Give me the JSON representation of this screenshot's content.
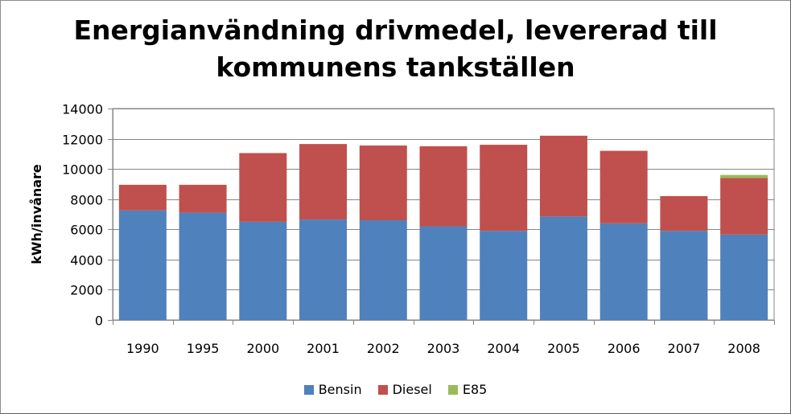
{
  "chart_data": {
    "type": "bar",
    "stacked": true,
    "title": "Energianvändning drivmedel, levererad till kommunens tankställen",
    "title_lines": [
      "Energianvändning drivmedel, levererad till",
      "kommunens tankställen"
    ],
    "xlabel": "",
    "ylabel": "kWh/invånare",
    "ylim": [
      0,
      14000
    ],
    "yticks": [
      0,
      2000,
      4000,
      6000,
      8000,
      10000,
      12000,
      14000
    ],
    "grid": true,
    "legend_position": "bottom",
    "categories": [
      "1990",
      "1995",
      "2000",
      "2001",
      "2002",
      "2003",
      "2004",
      "2005",
      "2006",
      "2007",
      "2008"
    ],
    "series": [
      {
        "name": "Bensin",
        "color": "#4f81bd",
        "values": [
          7250,
          7100,
          6500,
          6650,
          6600,
          6200,
          5900,
          6850,
          6400,
          5900,
          5650
        ]
      },
      {
        "name": "Diesel",
        "color": "#c0504d",
        "values": [
          1700,
          1850,
          4550,
          5000,
          4950,
          5300,
          5700,
          5350,
          4800,
          2300,
          3750
        ]
      },
      {
        "name": "E85",
        "color": "#9bbb59",
        "values": [
          0,
          0,
          0,
          0,
          0,
          0,
          0,
          0,
          0,
          0,
          200
        ]
      }
    ]
  }
}
